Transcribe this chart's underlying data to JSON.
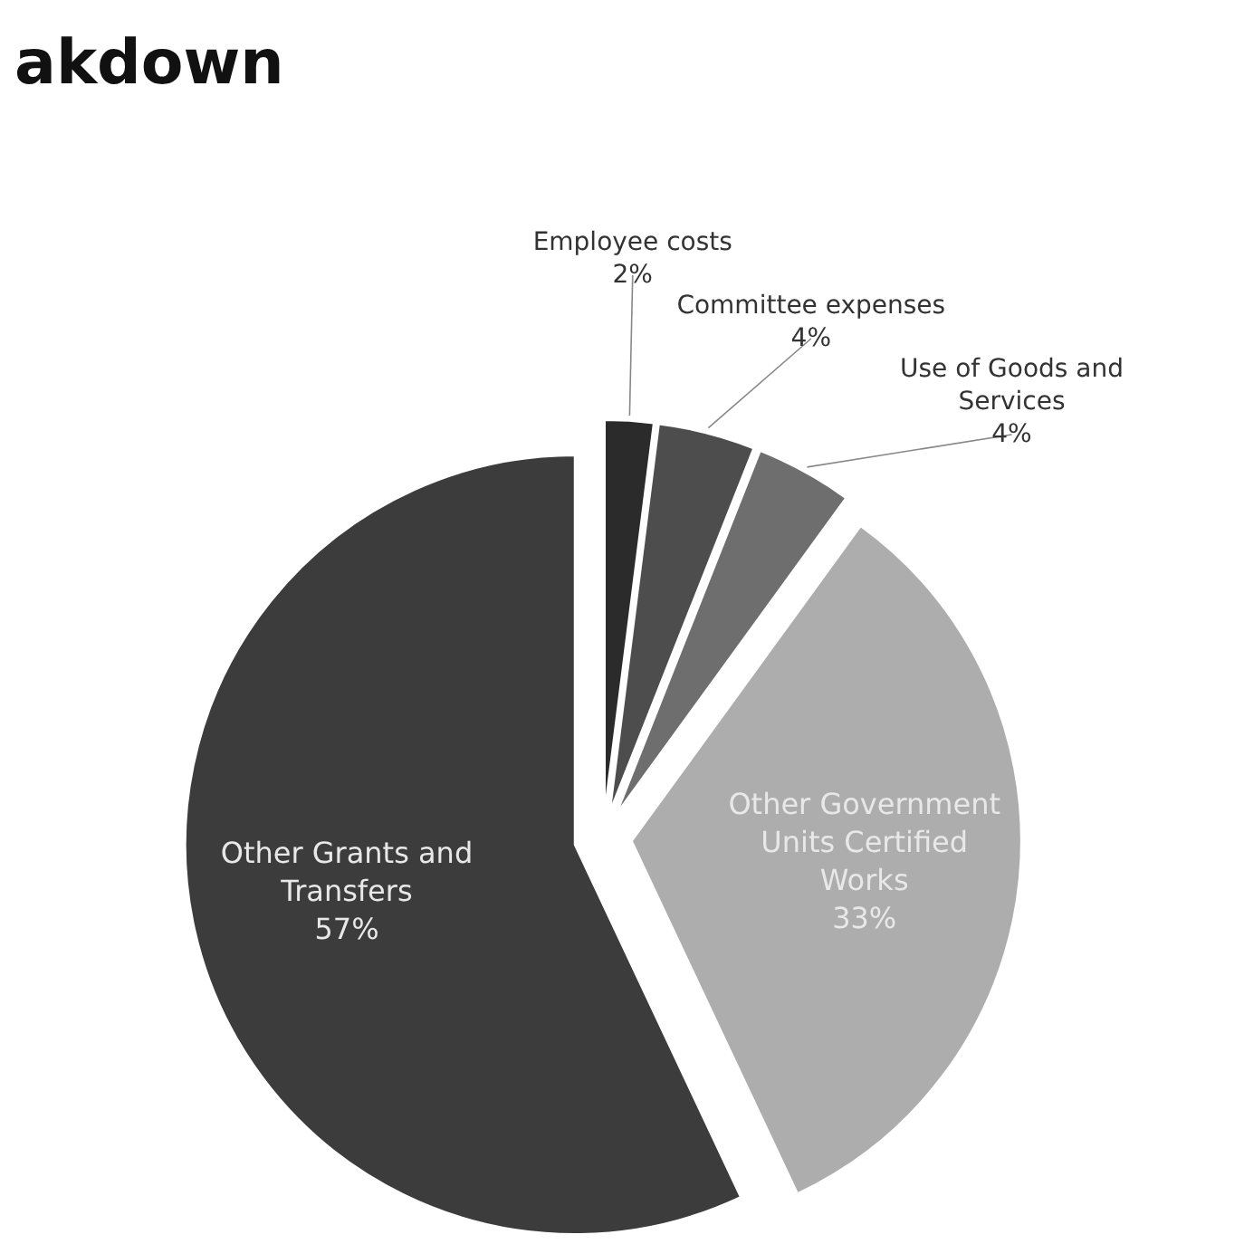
{
  "chart_data": {
    "type": "pie",
    "title": "akdown",
    "categories": [
      "Employee costs",
      "Committee expenses",
      "Use of Goods and Services",
      "Other Government Units Certified Works",
      "Other Grants and Transfers"
    ],
    "values": [
      2,
      4,
      4,
      33,
      57
    ],
    "value_labels": [
      "2%",
      "4%",
      "4%",
      "33%",
      "57%"
    ],
    "colors": [
      "#2b2b2b",
      "#4d4d4d",
      "#6e6e6e",
      "#adadad",
      "#3c3c3c"
    ]
  }
}
